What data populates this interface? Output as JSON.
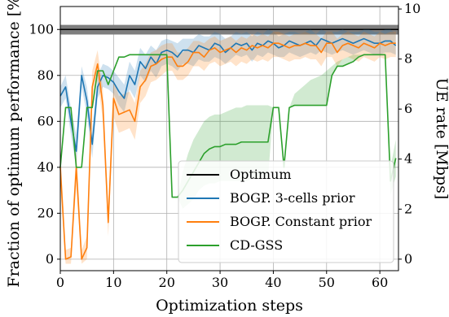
{
  "chart_data": {
    "type": "line",
    "xlabel": "Optimization steps",
    "ylabel": "Fraction of optimum performance [%]",
    "y2label": "UE rate [Mbps]",
    "xlim": [
      0,
      63.5
    ],
    "ylim": [
      -5,
      110
    ],
    "y2lim": [
      -0.46,
      10.1
    ],
    "xticks": [
      0,
      10,
      20,
      30,
      40,
      50,
      60
    ],
    "yticks": [
      0,
      20,
      40,
      60,
      80,
      100
    ],
    "y2ticks": [
      0,
      2,
      4,
      6,
      8,
      10
    ],
    "grid": true,
    "legend_position": "lower-right",
    "optimum_band": {
      "name": "Optimum",
      "value": 100,
      "lower": 97.8,
      "upper": 102,
      "color": "#000000"
    },
    "series": [
      {
        "name": "BOGP. 3-cells prior",
        "color": "#1f77b4",
        "x": [
          0,
          1,
          2,
          3,
          4,
          5,
          6,
          7,
          8,
          9,
          10,
          11,
          12,
          13,
          14,
          15,
          16,
          17,
          18,
          19,
          20,
          21,
          22,
          23,
          24,
          25,
          26,
          27,
          28,
          29,
          30,
          31,
          32,
          33,
          34,
          35,
          36,
          37,
          38,
          39,
          40,
          41,
          42,
          43,
          44,
          45,
          46,
          47,
          48,
          49,
          50,
          51,
          52,
          53,
          54,
          55,
          56,
          57,
          58,
          59,
          60,
          61,
          62,
          63
        ],
        "y": [
          71,
          75,
          60,
          47,
          80,
          69,
          50,
          75,
          80,
          79,
          77,
          73,
          70,
          80,
          76,
          86,
          83,
          88,
          85,
          90,
          91,
          90,
          88,
          91,
          91,
          90,
          93,
          92,
          91,
          94,
          93,
          90,
          92,
          94,
          93,
          94,
          91,
          94,
          93,
          95,
          94,
          92,
          93,
          95,
          94,
          93,
          94,
          95,
          93,
          96,
          95,
          94,
          95,
          96,
          95,
          94,
          95,
          96,
          95,
          94,
          94,
          95,
          95,
          93
        ],
        "lower": [
          66,
          70,
          54,
          40,
          75,
          63,
          44,
          70,
          75,
          74,
          72,
          67,
          64,
          74,
          70,
          80,
          77,
          82,
          79,
          84,
          85,
          84,
          82,
          85,
          85,
          84,
          87,
          86,
          86,
          88,
          87,
          85,
          87,
          89,
          88,
          89,
          86,
          89,
          88,
          90,
          89,
          88,
          88,
          90,
          89,
          88,
          89,
          90,
          89,
          91,
          90,
          89,
          90,
          91,
          90,
          89,
          90,
          91,
          90,
          89,
          89,
          90,
          90,
          89
        ],
        "upper": [
          75,
          80,
          66,
          54,
          84,
          75,
          56,
          80,
          85,
          84,
          82,
          79,
          76,
          86,
          82,
          92,
          89,
          93,
          91,
          95,
          96,
          95,
          94,
          96,
          96,
          96,
          98,
          97,
          97,
          99,
          98,
          96,
          97,
          99,
          98,
          99,
          97,
          99,
          98,
          100,
          99,
          97,
          98,
          99,
          99,
          98,
          99,
          100,
          98,
          100,
          99,
          99,
          99,
          100,
          99,
          99,
          99,
          100,
          100,
          99,
          99,
          100,
          100,
          98
        ]
      },
      {
        "name": "BOGP. Constant prior",
        "color": "#ff7f0e",
        "x": [
          0,
          1,
          2,
          3,
          4,
          5,
          6,
          7,
          8,
          9,
          10,
          11,
          12,
          13,
          14,
          15,
          16,
          17,
          18,
          19,
          20,
          21,
          22,
          23,
          24,
          25,
          26,
          27,
          28,
          29,
          30,
          31,
          32,
          33,
          34,
          35,
          36,
          37,
          38,
          39,
          40,
          41,
          42,
          43,
          44,
          45,
          46,
          47,
          48,
          49,
          50,
          51,
          52,
          53,
          54,
          55,
          56,
          57,
          58,
          59,
          60,
          61,
          62,
          63
        ],
        "y": [
          40,
          0,
          1,
          40,
          0,
          5,
          75,
          85,
          67,
          16,
          70,
          63,
          64,
          65,
          60,
          75,
          78,
          84,
          85,
          87,
          88,
          88,
          84,
          84,
          86,
          90,
          90,
          88,
          91,
          92,
          90,
          91,
          92,
          90,
          92,
          91,
          93,
          92,
          93,
          92,
          94,
          94,
          93,
          92,
          93,
          93,
          94,
          93,
          93,
          90,
          94,
          94,
          90,
          93,
          94,
          93,
          92,
          94,
          93,
          92,
          94,
          93,
          94,
          94
        ],
        "lower": [
          32,
          -2,
          -2,
          32,
          -2,
          0,
          68,
          78,
          60,
          10,
          62,
          55,
          56,
          57,
          52,
          68,
          71,
          77,
          78,
          80,
          82,
          82,
          78,
          78,
          80,
          84,
          84,
          82,
          85,
          86,
          84,
          85,
          86,
          84,
          86,
          85,
          87,
          86,
          87,
          86,
          88,
          88,
          87,
          86,
          87,
          87,
          88,
          87,
          87,
          84,
          88,
          88,
          84,
          87,
          88,
          87,
          86,
          88,
          87,
          86,
          88,
          87,
          88,
          88
        ],
        "upper": [
          48,
          4,
          5,
          48,
          4,
          10,
          82,
          91,
          74,
          22,
          78,
          71,
          72,
          73,
          68,
          82,
          85,
          90,
          91,
          93,
          94,
          94,
          90,
          90,
          92,
          95,
          95,
          94,
          96,
          97,
          95,
          96,
          97,
          95,
          97,
          96,
          98,
          97,
          98,
          97,
          99,
          99,
          98,
          97,
          98,
          98,
          99,
          98,
          98,
          96,
          99,
          99,
          96,
          98,
          99,
          98,
          97,
          99,
          98,
          97,
          99,
          98,
          99,
          99
        ]
      },
      {
        "name": "CD-GSS",
        "color": "#2ca02c",
        "x": [
          0,
          1,
          2,
          3,
          4,
          5,
          6,
          7,
          8,
          9,
          10,
          11,
          12,
          13,
          14,
          15,
          16,
          17,
          18,
          19,
          20,
          21,
          22,
          23,
          24,
          25,
          26,
          27,
          28,
          29,
          30,
          31,
          32,
          33,
          34,
          35,
          36,
          37,
          38,
          39,
          40,
          41,
          42,
          43,
          44,
          45,
          46,
          47,
          48,
          49,
          50,
          51,
          52,
          53,
          54,
          55,
          56,
          57,
          58,
          59,
          60,
          61,
          62,
          63
        ],
        "y": [
          40,
          66,
          66,
          40,
          40,
          66,
          66,
          82,
          82,
          76,
          82,
          88,
          88,
          89,
          89,
          89,
          89,
          89,
          89,
          89,
          89,
          27,
          27,
          30,
          34,
          38,
          42,
          46,
          48,
          49,
          49,
          50,
          50,
          50,
          51,
          51,
          51,
          51,
          51,
          51,
          66,
          66,
          40,
          66,
          67,
          67,
          67,
          67,
          67,
          67,
          67,
          80,
          84,
          84,
          85,
          86,
          88,
          89,
          89,
          89,
          89,
          89,
          34,
          44
        ],
        "lower": [
          40,
          66,
          66,
          40,
          40,
          66,
          66,
          82,
          82,
          76,
          82,
          88,
          88,
          89,
          89,
          89,
          89,
          89,
          89,
          89,
          89,
          27,
          27,
          22,
          24,
          26,
          30,
          32,
          33,
          33,
          34,
          34,
          34,
          34,
          34,
          34,
          35,
          35,
          35,
          35,
          66,
          66,
          40,
          66,
          67,
          67,
          67,
          67,
          67,
          67,
          67,
          80,
          84,
          84,
          85,
          86,
          88,
          89,
          89,
          89,
          89,
          89,
          28,
          36
        ],
        "upper": [
          40,
          66,
          66,
          40,
          40,
          66,
          66,
          82,
          82,
          76,
          82,
          88,
          88,
          89,
          89,
          89,
          89,
          89,
          89,
          89,
          89,
          27,
          27,
          38,
          46,
          52,
          56,
          60,
          62,
          63,
          63,
          64,
          65,
          66,
          66,
          67,
          67,
          67,
          67,
          67,
          66,
          66,
          40,
          66,
          72,
          74,
          76,
          78,
          79,
          80,
          82,
          84,
          86,
          87,
          88,
          89,
          89,
          89,
          89,
          89,
          89,
          89,
          40,
          52
        ]
      }
    ]
  }
}
